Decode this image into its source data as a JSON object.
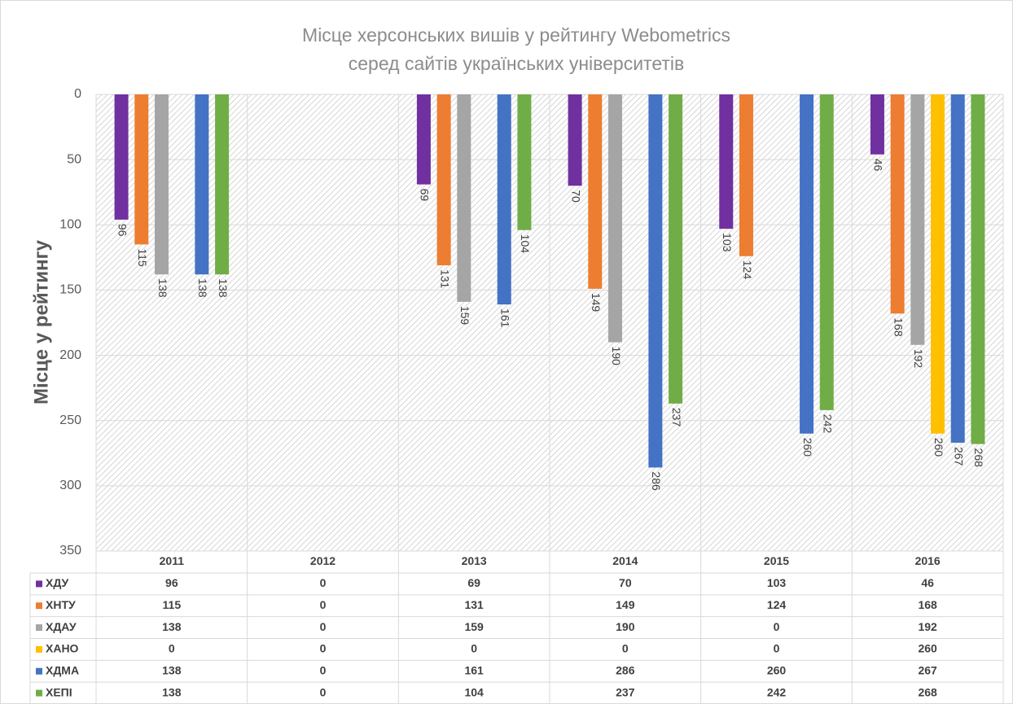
{
  "chart_data": {
    "type": "bar",
    "title": [
      "Місце херсонських вишів у рейтингу Webometrics",
      "серед сайтів українських університетів"
    ],
    "y_label": "Місце у рейтингу",
    "categories": [
      "2011",
      "2012",
      "2013",
      "2014",
      "2015",
      "2016"
    ],
    "series": [
      {
        "name": "ХДУ",
        "color": "#7030a0",
        "values": [
          96,
          0,
          69,
          70,
          103,
          46
        ]
      },
      {
        "name": "ХНТУ",
        "color": "#ed7d31",
        "values": [
          115,
          0,
          131,
          149,
          124,
          168
        ]
      },
      {
        "name": "ХДАУ",
        "color": "#a5a5a5",
        "values": [
          138,
          0,
          159,
          190,
          0,
          192
        ]
      },
      {
        "name": "ХАНО",
        "color": "#ffc000",
        "values": [
          0,
          0,
          0,
          0,
          0,
          260
        ]
      },
      {
        "name": "ХДМА",
        "color": "#4472c4",
        "values": [
          138,
          0,
          161,
          286,
          260,
          267
        ]
      },
      {
        "name": "ХЕПІ",
        "color": "#70ad47",
        "values": [
          138,
          0,
          104,
          237,
          242,
          268
        ]
      }
    ],
    "ylim": [
      0,
      350
    ],
    "yticks": [
      0,
      50,
      100,
      150,
      200,
      250,
      300,
      350
    ],
    "y_inverted": true,
    "grid": true,
    "data_table": true
  }
}
